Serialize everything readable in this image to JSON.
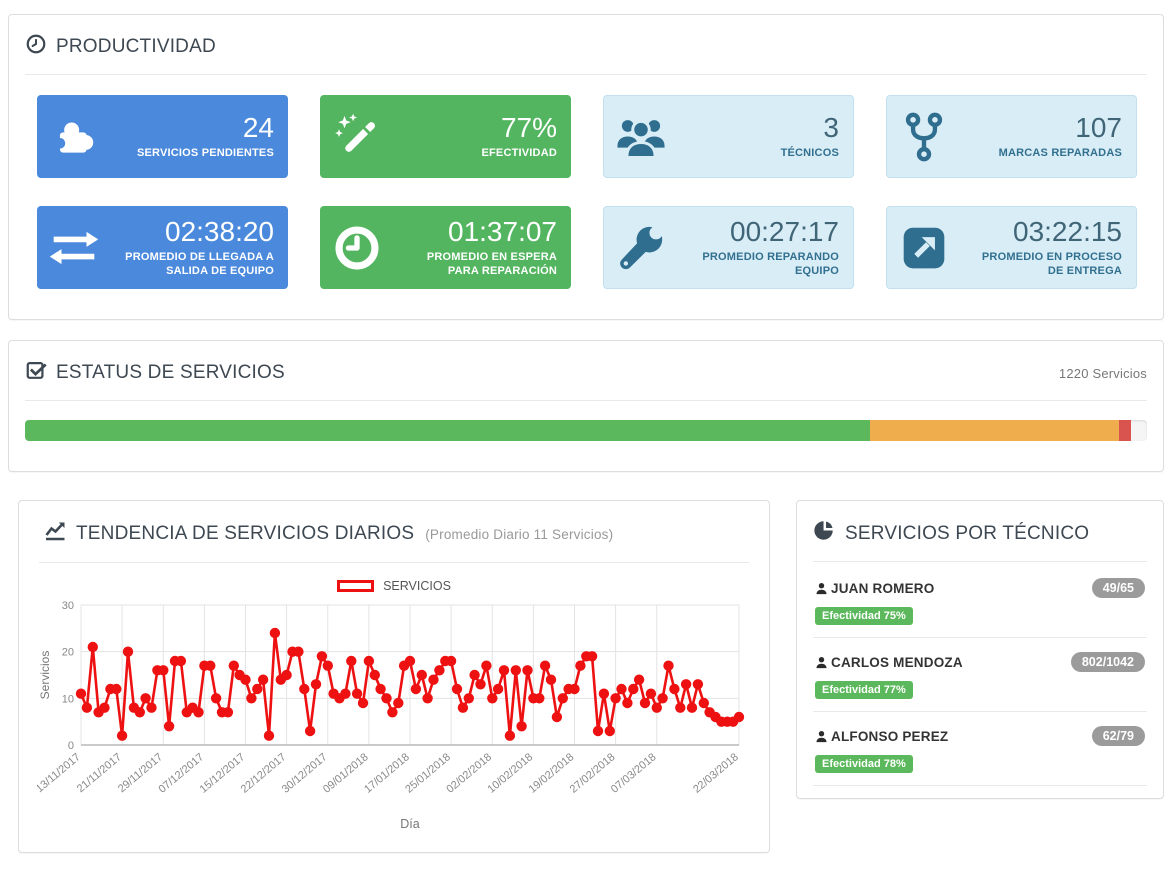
{
  "productividad": {
    "title": "PRODUCTIVIDAD",
    "cards": [
      {
        "value": "24",
        "label": "SERVICIOS PENDIENTES",
        "icon": "puzzle-icon"
      },
      {
        "value": "77%",
        "label": "EFECTIVIDAD",
        "icon": "magic-wand-icon"
      },
      {
        "value": "3",
        "label": "TÉCNICOS",
        "icon": "users-icon"
      },
      {
        "value": "107",
        "label": "MARCAS REPARADAS",
        "icon": "code-fork-icon"
      },
      {
        "value": "02:38:20",
        "label": "PROMEDIO DE LLEGADA A SALIDA DE EQUIPO",
        "icon": "arrows-exchange-icon"
      },
      {
        "value": "01:37:07",
        "label": "PROMEDIO EN ESPERA PARA REPARACIÓN",
        "icon": "clock-icon"
      },
      {
        "value": "00:27:17",
        "label": "PROMEDIO REPARANDO EQUIPO",
        "icon": "wrench-icon"
      },
      {
        "value": "03:22:15",
        "label": "PROMEDIO EN PROCESO DE ENTREGA",
        "icon": "external-link-icon"
      }
    ]
  },
  "estatus": {
    "title": "ESTATUS DE SERVICIOS",
    "total_label": "1220 Servicios",
    "segments": [
      {
        "color": "#5cb85c",
        "percent": 75.3
      },
      {
        "color": "#f0ad4e",
        "percent": 22.2
      },
      {
        "color": "#d9534f",
        "percent": 1.1
      }
    ]
  },
  "tendencia": {
    "title": "TENDENCIA DE SERVICIOS DIARIOS",
    "subtitle": "(Promedio Diario 11 Servicios)"
  },
  "chart_data": {
    "type": "line",
    "title": "TENDENCIA DE SERVICIOS DIARIOS",
    "subtitle": "(Promedio Diario 11 Servicios)",
    "legend": "SERVICIOS",
    "xlabel": "Día",
    "ylabel": "Servicios",
    "ylim": [
      0,
      30
    ],
    "yticks": [
      0,
      10,
      20,
      30
    ],
    "grid": true,
    "legend_position": "top-center",
    "series_color": "#ee1111",
    "x_tick_labels": [
      "13/11/2017",
      "21/11/2017",
      "29/11/2017",
      "07/12/2017",
      "15/12/2017",
      "22/12/2017",
      "30/12/2017",
      "09/01/2018",
      "17/01/2018",
      "25/01/2018",
      "02/02/2018",
      "10/02/2018",
      "19/02/2018",
      "27/02/2018",
      "07/03/2018",
      "22/03/2018"
    ],
    "x_tick_indices": [
      0,
      7,
      14,
      21,
      28,
      35,
      42,
      49,
      56,
      63,
      70,
      77,
      84,
      91,
      98,
      112
    ],
    "values": [
      11,
      8,
      21,
      7,
      8,
      12,
      12,
      2,
      20,
      8,
      7,
      10,
      8,
      16,
      16,
      4,
      18,
      18,
      7,
      8,
      7,
      17,
      17,
      10,
      7,
      7,
      17,
      15,
      14,
      10,
      12,
      14,
      2,
      24,
      14,
      15,
      20,
      20,
      12,
      3,
      13,
      19,
      17,
      11,
      10,
      11,
      18,
      11,
      9,
      18,
      15,
      12,
      10,
      7,
      9,
      17,
      18,
      12,
      15,
      10,
      14,
      16,
      18,
      18,
      12,
      8,
      10,
      15,
      13,
      17,
      10,
      12,
      16,
      2,
      16,
      4,
      16,
      10,
      10,
      17,
      14,
      6,
      10,
      12,
      12,
      17,
      19,
      19,
      3,
      11,
      3,
      10,
      12,
      9,
      12,
      14,
      9,
      11,
      8,
      10,
      17,
      12,
      8,
      13,
      8,
      13,
      9,
      7,
      6,
      5,
      5,
      5,
      6
    ]
  },
  "tecnicos": {
    "title": "SERVICIOS POR TÉCNICO",
    "badge_color": "#5cb85c",
    "items": [
      {
        "name": "JUAN ROMERO",
        "services": "49/65",
        "efectividad": "Efectividad 75%"
      },
      {
        "name": "CARLOS MENDOZA",
        "services": "802/1042",
        "efectividad": "Efectividad 77%"
      },
      {
        "name": "ALFONSO PEREZ",
        "services": "62/79",
        "efectividad": "Efectividad 78%"
      }
    ]
  }
}
